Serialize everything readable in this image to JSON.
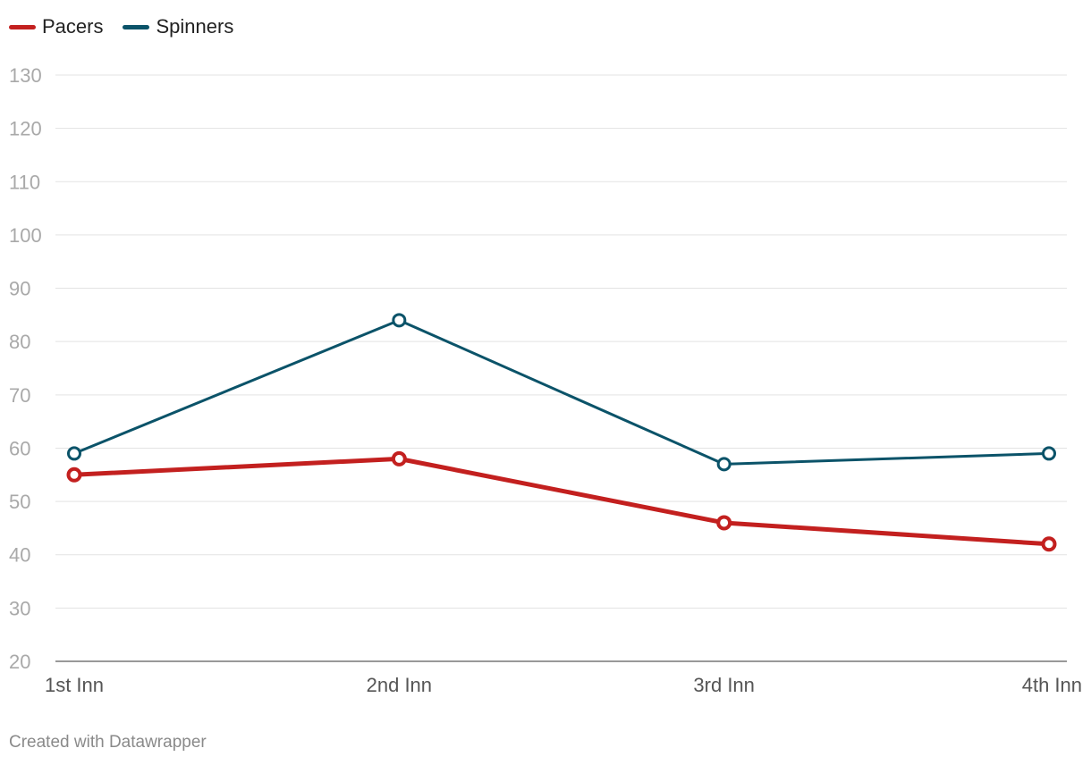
{
  "chart_data": {
    "type": "line",
    "categories": [
      "1st Inn",
      "2nd Inn",
      "3rd Inn",
      "4th Inn"
    ],
    "series": [
      {
        "name": "Pacers",
        "values": [
          55,
          58,
          46,
          42
        ],
        "color": "#c3201f"
      },
      {
        "name": "Spinners",
        "values": [
          59,
          84,
          57,
          59
        ],
        "color": "#0b5369"
      }
    ],
    "ylim": [
      20,
      130
    ],
    "yticks": [
      20,
      30,
      40,
      50,
      60,
      70,
      80,
      90,
      100,
      110,
      120,
      130
    ],
    "grid": true,
    "legend": "top-left",
    "title": "",
    "xlabel": "",
    "ylabel": ""
  },
  "footer": {
    "credit": "Created with Datawrapper"
  }
}
